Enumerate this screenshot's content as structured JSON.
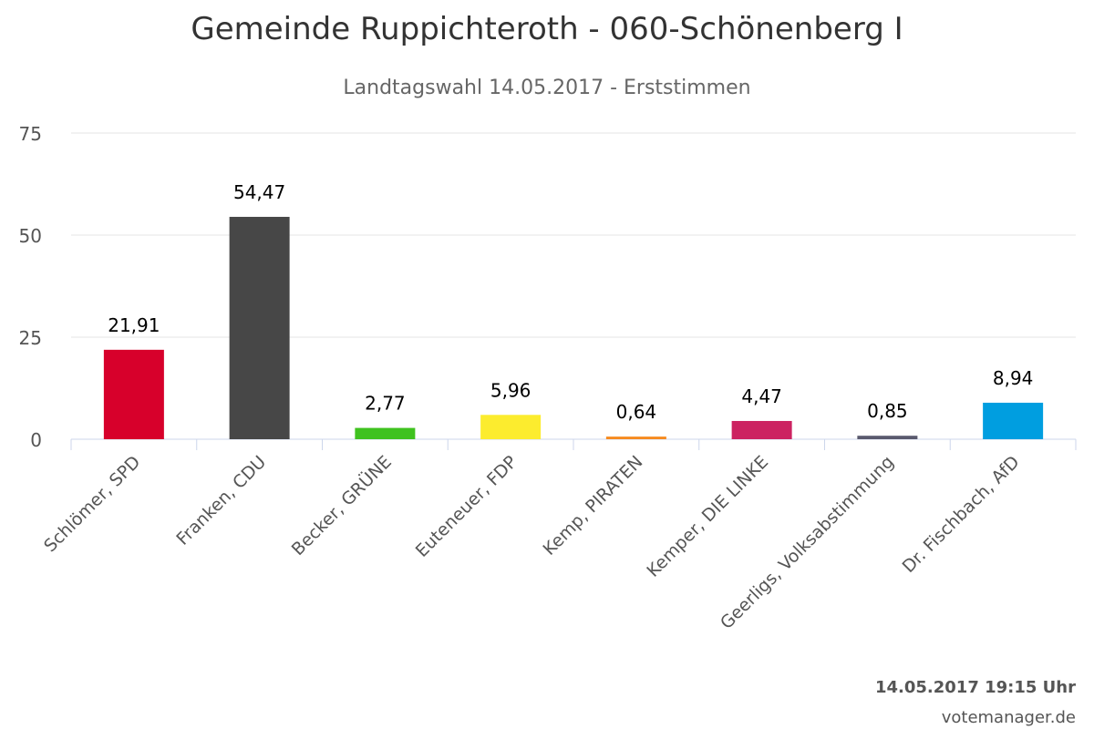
{
  "chart_data": {
    "type": "bar",
    "title": "Gemeinde Ruppichteroth - 060-Schönenberg I",
    "subtitle": "Landtagswahl 14.05.2017 - Erststimmen",
    "categories": [
      "Schlömer, SPD",
      "Franken, CDU",
      "Becker, GRÜNE",
      "Euteneuer, FDP",
      "Kemp, PIRATEN",
      "Kemper, DIE LINKE",
      "Geerligs, Volksabstimmung",
      "Dr. Fischbach, AfD"
    ],
    "values": [
      21.91,
      54.47,
      2.77,
      5.96,
      0.64,
      4.47,
      0.85,
      8.94
    ],
    "data_labels": [
      "21,91",
      "54,47",
      "2,77",
      "5,96",
      "0,64",
      "4,47",
      "0,85",
      "8,94"
    ],
    "colors": [
      "#d7002b",
      "#474747",
      "#3fc21f",
      "#fcec2e",
      "#f68a1e",
      "#cc2261",
      "#5a5a6e",
      "#009ee0"
    ],
    "ylim": [
      0,
      75
    ],
    "yticks": [
      0,
      25,
      50,
      75
    ],
    "grid": true,
    "legend": "none"
  },
  "credits": {
    "timestamp": "14.05.2017 19:15 Uhr",
    "site": "votemanager.de"
  }
}
